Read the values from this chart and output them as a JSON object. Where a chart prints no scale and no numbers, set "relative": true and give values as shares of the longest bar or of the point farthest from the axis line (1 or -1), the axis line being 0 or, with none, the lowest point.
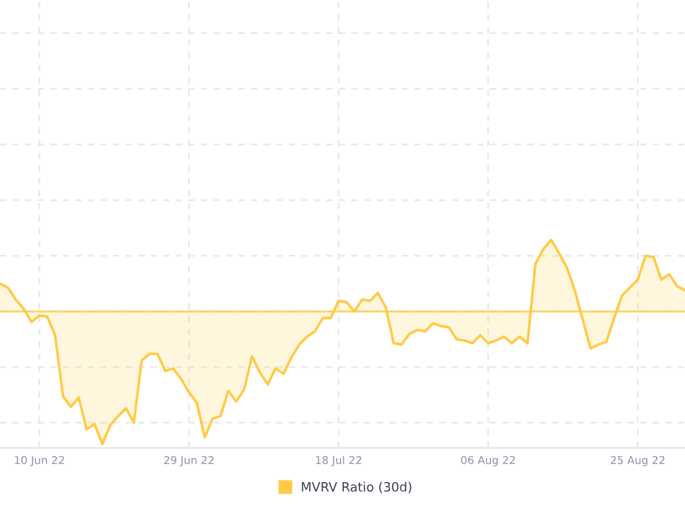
{
  "chart_data": {
    "type": "area",
    "relative": true,
    "x": [
      "2022-06-05",
      "2022-06-06",
      "2022-06-07",
      "2022-06-08",
      "2022-06-09",
      "2022-06-10",
      "2022-06-11",
      "2022-06-12",
      "2022-06-13",
      "2022-06-14",
      "2022-06-15",
      "2022-06-16",
      "2022-06-17",
      "2022-06-18",
      "2022-06-19",
      "2022-06-20",
      "2022-06-21",
      "2022-06-22",
      "2022-06-23",
      "2022-06-24",
      "2022-06-25",
      "2022-06-26",
      "2022-06-27",
      "2022-06-28",
      "2022-06-29",
      "2022-06-30",
      "2022-07-01",
      "2022-07-02",
      "2022-07-03",
      "2022-07-04",
      "2022-07-05",
      "2022-07-06",
      "2022-07-07",
      "2022-07-08",
      "2022-07-09",
      "2022-07-10",
      "2022-07-11",
      "2022-07-12",
      "2022-07-13",
      "2022-07-14",
      "2022-07-15",
      "2022-07-16",
      "2022-07-17",
      "2022-07-18",
      "2022-07-19",
      "2022-07-20",
      "2022-07-21",
      "2022-07-22",
      "2022-07-23",
      "2022-07-24",
      "2022-07-25",
      "2022-07-26",
      "2022-07-27",
      "2022-07-28",
      "2022-07-29",
      "2022-07-30",
      "2022-07-31",
      "2022-08-01",
      "2022-08-02",
      "2022-08-03",
      "2022-08-04",
      "2022-08-05",
      "2022-08-06",
      "2022-08-07",
      "2022-08-08",
      "2022-08-09",
      "2022-08-10",
      "2022-08-11",
      "2022-08-12",
      "2022-08-13",
      "2022-08-14",
      "2022-08-15",
      "2022-08-16",
      "2022-08-17",
      "2022-08-18",
      "2022-08-19",
      "2022-08-20",
      "2022-08-21",
      "2022-08-22",
      "2022-08-23",
      "2022-08-24",
      "2022-08-25",
      "2022-08-26",
      "2022-08-27",
      "2022-08-28",
      "2022-08-29",
      "2022-08-30",
      "2022-08-31"
    ],
    "series": [
      {
        "name": "MVRV Ratio (30d)",
        "color": "#ffcb47",
        "values": [
          0.21,
          0.18,
          0.09,
          0.02,
          -0.08,
          -0.03,
          -0.04,
          -0.18,
          -0.64,
          -0.72,
          -0.65,
          -0.89,
          -0.85,
          -1,
          -0.86,
          -0.79,
          -0.73,
          -0.84,
          -0.37,
          -0.32,
          -0.32,
          -0.45,
          -0.43,
          -0.51,
          -0.61,
          -0.69,
          -0.95,
          -0.81,
          -0.79,
          -0.6,
          -0.68,
          -0.59,
          -0.34,
          -0.46,
          -0.55,
          -0.43,
          -0.47,
          -0.35,
          -0.25,
          -0.19,
          -0.15,
          -0.05,
          -0.05,
          0.08,
          0.07,
          0,
          0.09,
          0.08,
          0.14,
          0.03,
          -0.24,
          -0.25,
          -0.17,
          -0.14,
          -0.15,
          -0.09,
          -0.11,
          -0.12,
          -0.21,
          -0.22,
          -0.24,
          -0.18,
          -0.24,
          -0.22,
          -0.19,
          -0.24,
          -0.19,
          -0.24,
          0.36,
          0.47,
          0.54,
          0.44,
          0.33,
          0.16,
          -0.06,
          -0.28,
          -0.25,
          -0.23,
          -0.05,
          0.12,
          0.18,
          0.24,
          0.42,
          0.41,
          0.24,
          0.28,
          0.19,
          0.16
        ]
      }
    ],
    "xlim": [
      "2022-06-05",
      "2022-08-31"
    ],
    "xticks": [
      {
        "value": "2022-06-10",
        "label": "10 Jun 22"
      },
      {
        "value": "2022-06-29",
        "label": "29 Jun 22"
      },
      {
        "value": "2022-07-18",
        "label": "18 Jul 22"
      },
      {
        "value": "2022-08-06",
        "label": "06 Aug 22"
      },
      {
        "value": "2022-08-25",
        "label": "25 Aug 22"
      }
    ],
    "ref_lines": [
      {
        "axis": "y",
        "value": 0,
        "color": "#ffcb47"
      }
    ],
    "grid": true,
    "legend": "bottom",
    "tick_labels": "x"
  }
}
